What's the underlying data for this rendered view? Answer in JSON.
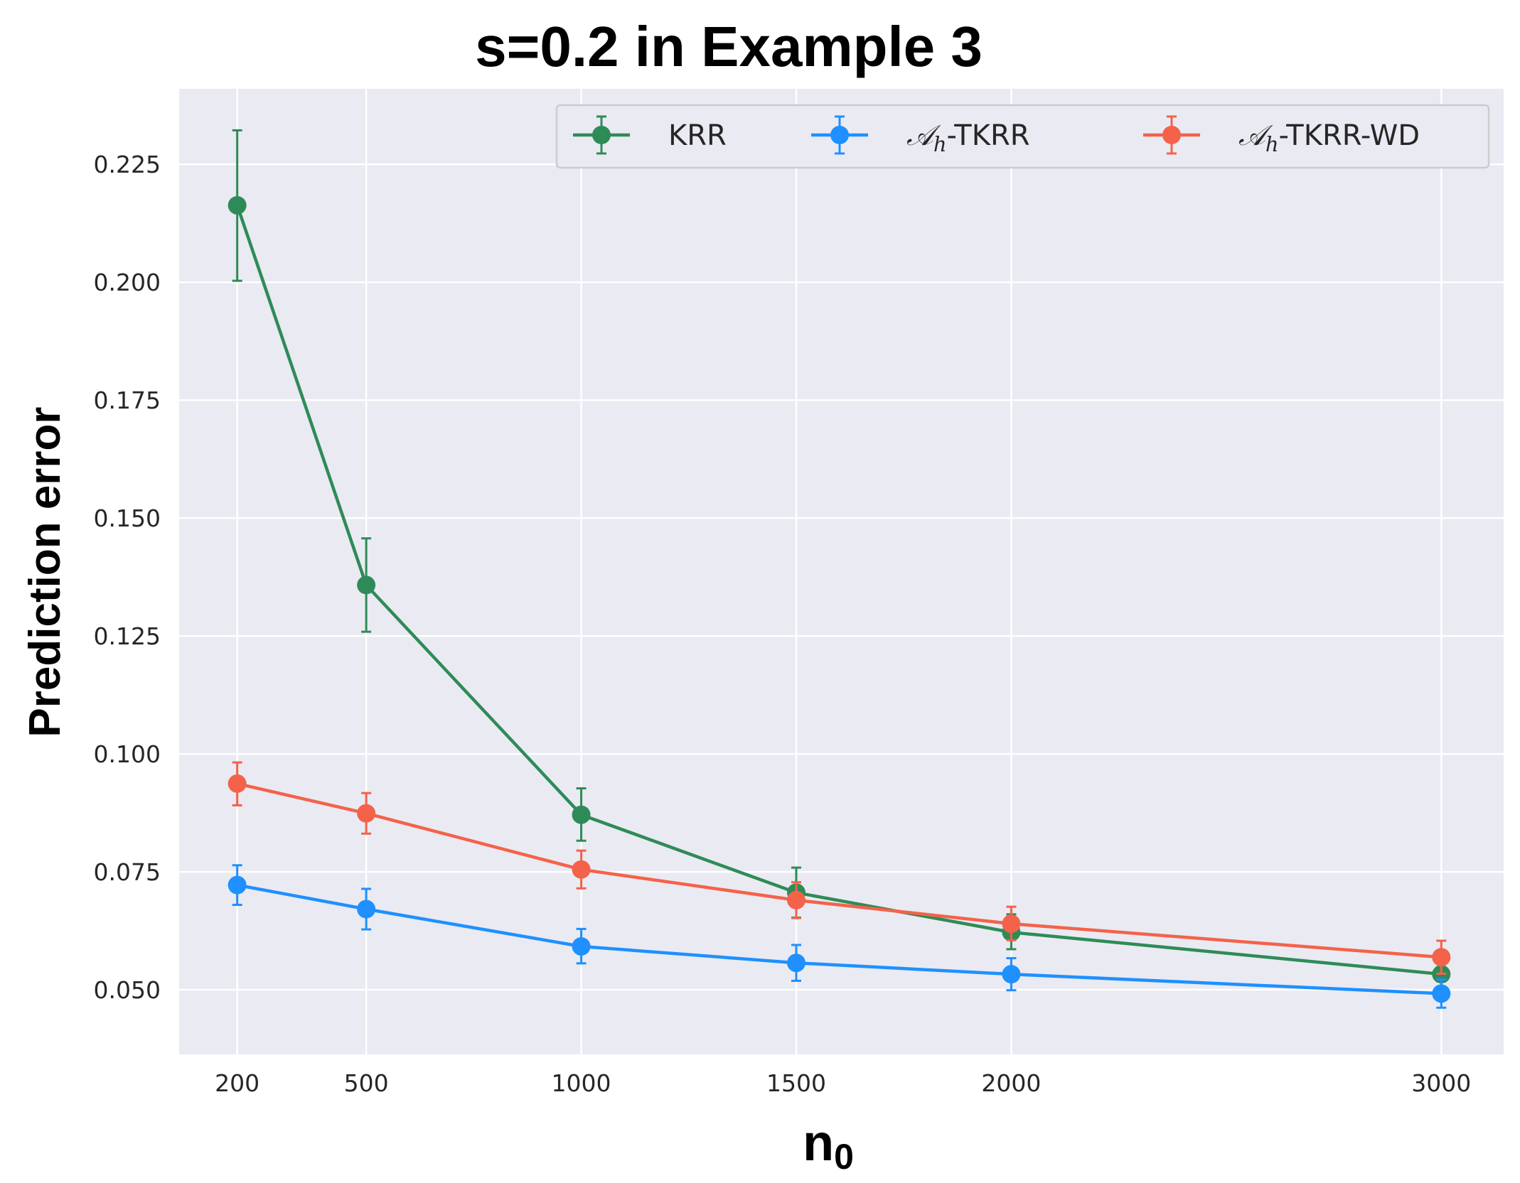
{
  "chart_data": {
    "type": "line",
    "title": "s=0.2 in Example 3",
    "xlabel": {
      "main": "n",
      "sub": "0"
    },
    "ylabel": "Prediction error",
    "x": [
      200,
      500,
      1000,
      1500,
      2000,
      3000
    ],
    "xticks": [
      "200",
      "500",
      "1000",
      "1500",
      "2000",
      "3000"
    ],
    "xlim": [
      65,
      3145
    ],
    "ylim": [
      0.0363,
      0.241
    ],
    "yticks": [
      "0.050",
      "0.075",
      "0.100",
      "0.125",
      "0.150",
      "0.175",
      "0.200",
      "0.225"
    ],
    "ytick_values": [
      0.05,
      0.075,
      0.1,
      0.125,
      0.15,
      0.175,
      0.2,
      0.225
    ],
    "grid": true,
    "legend_position": "top-right",
    "series": [
      {
        "name": "KRR",
        "color": "#2e8b57",
        "values": [
          0.2163,
          0.1358,
          0.0871,
          0.0706,
          0.0622,
          0.0533
        ],
        "err_low": [
          0.2003,
          0.1259,
          0.0816,
          0.0653,
          0.0586,
          0.0518
        ],
        "err_high": [
          0.2322,
          0.1457,
          0.0927,
          0.0759,
          0.066,
          0.0548
        ]
      },
      {
        "name": "𝒜h-TKRR",
        "name_parts": {
          "math": "𝒜",
          "sub": "h",
          "rest": "-TKRR"
        },
        "color": "#1e90ff",
        "values": [
          0.0722,
          0.0671,
          0.0592,
          0.0557,
          0.0533,
          0.0492
        ],
        "err_low": [
          0.068,
          0.0628,
          0.0556,
          0.0519,
          0.0499,
          0.0462
        ],
        "err_high": [
          0.0764,
          0.0714,
          0.0629,
          0.0595,
          0.0567,
          0.0522
        ]
      },
      {
        "name": "𝒜h-TKRR-WD",
        "name_parts": {
          "math": "𝒜",
          "sub": "h",
          "rest": "-TKRR-WD"
        },
        "color": "#f4624a",
        "values": [
          0.0937,
          0.0874,
          0.0755,
          0.069,
          0.064,
          0.0569
        ],
        "err_low": [
          0.0891,
          0.0831,
          0.0715,
          0.0652,
          0.0605,
          0.0534
        ],
        "err_high": [
          0.0982,
          0.0917,
          0.0795,
          0.0728,
          0.0676,
          0.0604
        ]
      }
    ]
  }
}
